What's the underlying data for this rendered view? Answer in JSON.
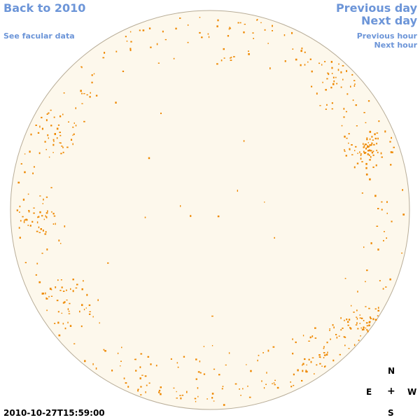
{
  "nav": {
    "back_label": "Back to 2010",
    "facular_label": "See facular data",
    "prev_day_label": "Previous day",
    "next_day_label": "Next day",
    "prev_hour_label": "Previous hour",
    "next_hour_label": "Next hour"
  },
  "compass": {
    "n": "N",
    "e": "E",
    "w": "W",
    "s": "S",
    "center": "+"
  },
  "timestamp": "2010-10-27T15:59:00",
  "colors": {
    "link": "#6c95d8",
    "disk_fill": "#fdf8ec",
    "disk_stroke": "#b8ad98",
    "facula": "#ee8800"
  }
}
